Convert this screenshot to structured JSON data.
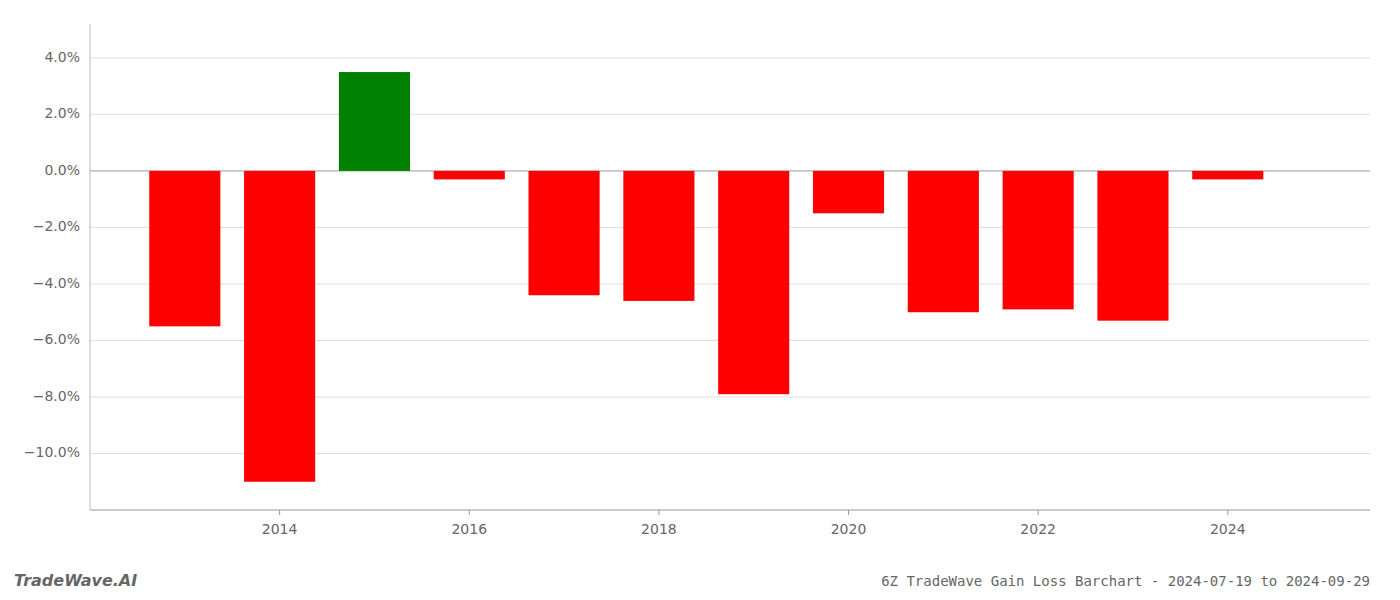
{
  "chart_data": {
    "type": "bar",
    "title": "6Z TradeWave Gain Loss Barchart - 2024-07-19 to 2024-09-29",
    "annotations": [
      "TradeWave.AI"
    ],
    "x": [
      2013,
      2014,
      2015,
      2016,
      2017,
      2018,
      2019,
      2020,
      2021,
      2022,
      2023,
      2024
    ],
    "values": [
      -0.055,
      -0.11,
      0.035,
      -0.003,
      -0.044,
      -0.046,
      -0.079,
      -0.015,
      -0.05,
      -0.049,
      -0.053,
      -0.003
    ],
    "colors": [
      "#ff0000",
      "#ff0000",
      "#008000",
      "#ff0000",
      "#ff0000",
      "#ff0000",
      "#ff0000",
      "#ff0000",
      "#ff0000",
      "#ff0000",
      "#ff0000",
      "#ff0000"
    ],
    "ylim": [
      -0.12,
      0.052
    ],
    "yticks": [
      {
        "value": -0.1,
        "label": "−10.0%"
      },
      {
        "value": -0.08,
        "label": "−8.0%"
      },
      {
        "value": -0.06,
        "label": "−6.0%"
      },
      {
        "value": -0.04,
        "label": "−4.0%"
      },
      {
        "value": -0.02,
        "label": "−2.0%"
      },
      {
        "value": 0.0,
        "label": "0.0%"
      },
      {
        "value": 0.02,
        "label": "2.0%"
      },
      {
        "value": 0.04,
        "label": "4.0%"
      }
    ],
    "xlim": [
      2012.0,
      2025.5
    ],
    "xticks": [
      2014,
      2016,
      2018,
      2020,
      2022,
      2024
    ],
    "grid": true
  }
}
